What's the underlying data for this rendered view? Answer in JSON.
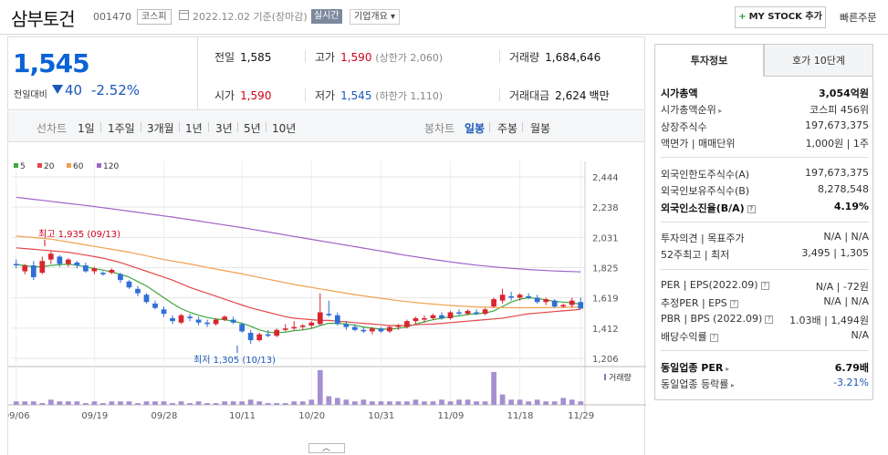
{
  "header": {
    "name": "삼부토건",
    "code": "001470",
    "market": "코스피",
    "date": "2022.12.02  기준(장마감)",
    "realtime": "실시간",
    "overview": "기업개요",
    "mystock": "MY STOCK 추가",
    "quick_order": "빠른주문"
  },
  "price": {
    "now": "1,545",
    "vs_label": "전일대비",
    "change": "40",
    "pct": "-2.52%"
  },
  "stats": {
    "prev_label": "전일",
    "prev": "1,585",
    "high_label": "고가",
    "high": "1,590",
    "upper_limit": "(상한가 2,060)",
    "volume_label": "거래량",
    "volume": "1,684,646",
    "open_label": "시가",
    "open": "1,590",
    "low_label": "저가",
    "low": "1,545",
    "lower_limit": "(하한가 1,110)",
    "amount_label": "거래대금",
    "amount": "2,624",
    "amount_unit": "백만"
  },
  "tabs": {
    "line_label": "선차트",
    "line": [
      "1일",
      "1주일",
      "3개월",
      "1년",
      "3년",
      "5년",
      "10년"
    ],
    "candle_label": "봉차트",
    "candle": [
      "일봉",
      "주봉",
      "월봉"
    ],
    "candle_active": "일봉"
  },
  "chart_data": {
    "type": "candlestick",
    "legend": [
      "5",
      "20",
      "60",
      "120"
    ],
    "ma_colors": [
      "#3ea83e",
      "#e24848",
      "#f0a050",
      "#9e64c8"
    ],
    "up_color": "#d9262e",
    "down_color": "#2f6fd6",
    "price_ticks": [
      "2,444",
      "2,238",
      "2,031",
      "1,825",
      "1,619",
      "1,412",
      "1,206"
    ],
    "x_labels": [
      "09/06",
      "09/19",
      "09/28",
      "10/11",
      "10/20",
      "10/31",
      "11/09",
      "11/18",
      "11/29"
    ],
    "ylim": [
      1206,
      2444
    ],
    "high_label": "최고 1,935 (09/13)",
    "low_label": "최저 1,305 (10/13)",
    "volume_label": "거래량",
    "candles": [
      {
        "o": 1850,
        "h": 1880,
        "l": 1820,
        "c": 1840
      },
      {
        "o": 1800,
        "h": 1850,
        "l": 1780,
        "c": 1840
      },
      {
        "o": 1840,
        "h": 1870,
        "l": 1740,
        "c": 1760
      },
      {
        "o": 1790,
        "h": 1900,
        "l": 1780,
        "c": 1870
      },
      {
        "o": 1880,
        "h": 1935,
        "l": 1850,
        "c": 1920
      },
      {
        "o": 1900,
        "h": 1910,
        "l": 1830,
        "c": 1850
      },
      {
        "o": 1850,
        "h": 1890,
        "l": 1830,
        "c": 1880
      },
      {
        "o": 1860,
        "h": 1870,
        "l": 1820,
        "c": 1840
      },
      {
        "o": 1840,
        "h": 1860,
        "l": 1790,
        "c": 1800
      },
      {
        "o": 1800,
        "h": 1830,
        "l": 1780,
        "c": 1820
      },
      {
        "o": 1790,
        "h": 1800,
        "l": 1770,
        "c": 1780
      },
      {
        "o": 1790,
        "h": 1820,
        "l": 1780,
        "c": 1810
      },
      {
        "o": 1780,
        "h": 1790,
        "l": 1720,
        "c": 1740
      },
      {
        "o": 1730,
        "h": 1740,
        "l": 1680,
        "c": 1690
      },
      {
        "o": 1680,
        "h": 1700,
        "l": 1630,
        "c": 1650
      },
      {
        "o": 1640,
        "h": 1650,
        "l": 1580,
        "c": 1590
      },
      {
        "o": 1580,
        "h": 1600,
        "l": 1540,
        "c": 1550
      },
      {
        "o": 1540,
        "h": 1560,
        "l": 1490,
        "c": 1510
      },
      {
        "o": 1480,
        "h": 1500,
        "l": 1440,
        "c": 1460
      },
      {
        "o": 1450,
        "h": 1510,
        "l": 1440,
        "c": 1500
      },
      {
        "o": 1490,
        "h": 1510,
        "l": 1460,
        "c": 1480
      },
      {
        "o": 1470,
        "h": 1490,
        "l": 1430,
        "c": 1450
      },
      {
        "o": 1450,
        "h": 1470,
        "l": 1420,
        "c": 1440
      },
      {
        "o": 1440,
        "h": 1480,
        "l": 1430,
        "c": 1470
      },
      {
        "o": 1470,
        "h": 1500,
        "l": 1460,
        "c": 1490
      },
      {
        "o": 1470,
        "h": 1490,
        "l": 1440,
        "c": 1450
      },
      {
        "o": 1440,
        "h": 1450,
        "l": 1380,
        "c": 1390
      },
      {
        "o": 1380,
        "h": 1400,
        "l": 1305,
        "c": 1330
      },
      {
        "o": 1330,
        "h": 1380,
        "l": 1320,
        "c": 1370
      },
      {
        "o": 1370,
        "h": 1400,
        "l": 1350,
        "c": 1360
      },
      {
        "o": 1360,
        "h": 1410,
        "l": 1350,
        "c": 1400
      },
      {
        "o": 1400,
        "h": 1440,
        "l": 1390,
        "c": 1410
      },
      {
        "o": 1410,
        "h": 1460,
        "l": 1400,
        "c": 1420
      },
      {
        "o": 1420,
        "h": 1440,
        "l": 1400,
        "c": 1430
      },
      {
        "o": 1430,
        "h": 1460,
        "l": 1410,
        "c": 1450
      },
      {
        "o": 1440,
        "h": 1650,
        "l": 1430,
        "c": 1520
      },
      {
        "o": 1510,
        "h": 1600,
        "l": 1490,
        "c": 1500
      },
      {
        "o": 1500,
        "h": 1520,
        "l": 1430,
        "c": 1440
      },
      {
        "o": 1440,
        "h": 1460,
        "l": 1400,
        "c": 1420
      },
      {
        "o": 1420,
        "h": 1440,
        "l": 1390,
        "c": 1400
      },
      {
        "o": 1400,
        "h": 1420,
        "l": 1380,
        "c": 1390
      },
      {
        "o": 1390,
        "h": 1420,
        "l": 1370,
        "c": 1410
      },
      {
        "o": 1410,
        "h": 1420,
        "l": 1380,
        "c": 1390
      },
      {
        "o": 1390,
        "h": 1430,
        "l": 1380,
        "c": 1420
      },
      {
        "o": 1420,
        "h": 1440,
        "l": 1400,
        "c": 1430
      },
      {
        "o": 1420,
        "h": 1470,
        "l": 1410,
        "c": 1460
      },
      {
        "o": 1460,
        "h": 1490,
        "l": 1440,
        "c": 1480
      },
      {
        "o": 1470,
        "h": 1500,
        "l": 1450,
        "c": 1480
      },
      {
        "o": 1480,
        "h": 1510,
        "l": 1470,
        "c": 1500
      },
      {
        "o": 1500,
        "h": 1520,
        "l": 1470,
        "c": 1480
      },
      {
        "o": 1480,
        "h": 1530,
        "l": 1470,
        "c": 1520
      },
      {
        "o": 1520,
        "h": 1540,
        "l": 1500,
        "c": 1510
      },
      {
        "o": 1510,
        "h": 1540,
        "l": 1500,
        "c": 1530
      },
      {
        "o": 1520,
        "h": 1540,
        "l": 1500,
        "c": 1510
      },
      {
        "o": 1510,
        "h": 1550,
        "l": 1500,
        "c": 1540
      },
      {
        "o": 1560,
        "h": 1620,
        "l": 1550,
        "c": 1610
      },
      {
        "o": 1600,
        "h": 1680,
        "l": 1580,
        "c": 1640
      },
      {
        "o": 1630,
        "h": 1660,
        "l": 1600,
        "c": 1620
      },
      {
        "o": 1620,
        "h": 1650,
        "l": 1600,
        "c": 1640
      },
      {
        "o": 1630,
        "h": 1650,
        "l": 1610,
        "c": 1620
      },
      {
        "o": 1620,
        "h": 1640,
        "l": 1580,
        "c": 1590
      },
      {
        "o": 1590,
        "h": 1620,
        "l": 1570,
        "c": 1610
      },
      {
        "o": 1600,
        "h": 1610,
        "l": 1550,
        "c": 1560
      },
      {
        "o": 1560,
        "h": 1580,
        "l": 1550,
        "c": 1570
      },
      {
        "o": 1570,
        "h": 1620,
        "l": 1550,
        "c": 1600
      },
      {
        "o": 1590,
        "h": 1620,
        "l": 1545,
        "c": 1545
      }
    ],
    "ma5": [
      1845,
      1840,
      1830,
      1832,
      1840,
      1845,
      1848,
      1842,
      1830,
      1818,
      1808,
      1795,
      1780,
      1760,
      1730,
      1700,
      1660,
      1620,
      1580,
      1545,
      1520,
      1500,
      1485,
      1475,
      1470,
      1460,
      1445,
      1425,
      1400,
      1385,
      1380,
      1385,
      1395,
      1400,
      1410,
      1430,
      1445,
      1445,
      1440,
      1432,
      1420,
      1412,
      1405,
      1405,
      1410,
      1420,
      1440,
      1455,
      1470,
      1480,
      1490,
      1495,
      1505,
      1510,
      1515,
      1530,
      1560,
      1590,
      1610,
      1620,
      1615,
      1605,
      1595,
      1590,
      1585,
      1575
    ],
    "ma20": [
      1960,
      1955,
      1950,
      1945,
      1940,
      1935,
      1930,
      1920,
      1910,
      1900,
      1890,
      1875,
      1860,
      1840,
      1820,
      1800,
      1780,
      1760,
      1740,
      1715,
      1690,
      1670,
      1650,
      1630,
      1610,
      1590,
      1570,
      1550,
      1535,
      1520,
      1505,
      1490,
      1480,
      1475,
      1470,
      1465,
      1465,
      1460,
      1455,
      1450,
      1445,
      1440,
      1435,
      1430,
      1430,
      1430,
      1435,
      1438,
      1440,
      1445,
      1450,
      1455,
      1460,
      1465,
      1470,
      1475,
      1480,
      1490,
      1500,
      1510,
      1515,
      1520,
      1525,
      1530,
      1535,
      1540
    ],
    "ma60": [
      2040,
      2035,
      2030,
      2025,
      2020,
      2010,
      2000,
      1990,
      1980,
      1970,
      1960,
      1950,
      1940,
      1930,
      1918,
      1905,
      1893,
      1880,
      1870,
      1860,
      1850,
      1838,
      1826,
      1815,
      1804,
      1793,
      1782,
      1770,
      1758,
      1746,
      1734,
      1722,
      1710,
      1700,
      1690,
      1680,
      1670,
      1660,
      1650,
      1641,
      1632,
      1624,
      1616,
      1608,
      1600,
      1593,
      1587,
      1581,
      1576,
      1571,
      1567,
      1563,
      1560,
      1557,
      1555,
      1553,
      1552,
      1551,
      1551,
      1551,
      1552,
      1552,
      1553,
      1554,
      1555,
      1556
    ],
    "ma120": [
      2305,
      2298,
      2291,
      2284,
      2277,
      2270,
      2263,
      2256,
      2249,
      2242,
      2234,
      2226,
      2218,
      2210,
      2202,
      2194,
      2186,
      2178,
      2170,
      2161,
      2152,
      2143,
      2134,
      2125,
      2116,
      2107,
      2098,
      2088,
      2078,
      2068,
      2058,
      2048,
      2038,
      2028,
      2018,
      2008,
      1998,
      1988,
      1978,
      1968,
      1958,
      1948,
      1938,
      1928,
      1918,
      1908,
      1899,
      1890,
      1881,
      1872,
      1864,
      1856,
      1849,
      1842,
      1836,
      1830,
      1825,
      1820,
      1816,
      1812,
      1808,
      1805,
      1802,
      1800,
      1798,
      1796
    ],
    "volumes": [
      2,
      2,
      2,
      1,
      3,
      2,
      2,
      2,
      1,
      2,
      1,
      2,
      2,
      2,
      1,
      2,
      2,
      2,
      1,
      2,
      1,
      2,
      1,
      1,
      2,
      2,
      2,
      3,
      2,
      1,
      1,
      1,
      2,
      2,
      3,
      20,
      5,
      4,
      3,
      2,
      3,
      2,
      2,
      2,
      2,
      2,
      3,
      2,
      2,
      3,
      2,
      3,
      3,
      2,
      2,
      19,
      6,
      3,
      3,
      2,
      3,
      2,
      2,
      4,
      3,
      2
    ]
  },
  "panel": {
    "tab_info": "투자정보",
    "tab_order": "호가 10단계",
    "rows": [
      {
        "k": "시가총액",
        "v": "3,054억원",
        "bold": true
      },
      {
        "k": "시가총액순위",
        "v": "코스피 456위"
      },
      {
        "k": "상장주식수",
        "v": "197,673,375"
      },
      {
        "k": "액면가 | 매매단위",
        "v": "1,000원 | 1주"
      },
      {
        "k": "외국인한도주식수(A)",
        "v": "197,673,375"
      },
      {
        "k": "외국인보유주식수(B)",
        "v": "8,278,548"
      },
      {
        "k": "외국인소진율(B/A)",
        "v": "4.19%",
        "bold": true
      },
      {
        "k": "투자의견 | 목표주가",
        "v": "N/A | N/A"
      },
      {
        "k": "52주최고 | 최저",
        "v": "3,495 | 1,305"
      },
      {
        "k": "PER | EPS(2022.09)",
        "v": "N/A | -72원"
      },
      {
        "k": "추정PER | EPS",
        "v": "N/A | N/A"
      },
      {
        "k": "PBR | BPS (2022.09)",
        "v": "1.03배 | 1,494원"
      },
      {
        "k": "배당수익률",
        "v": "N/A"
      },
      {
        "k": "동일업종 PER",
        "v": "6.79배",
        "bold": true
      },
      {
        "k": "동일업종 등락률",
        "v": "-3.21%",
        "blue": true
      }
    ]
  }
}
